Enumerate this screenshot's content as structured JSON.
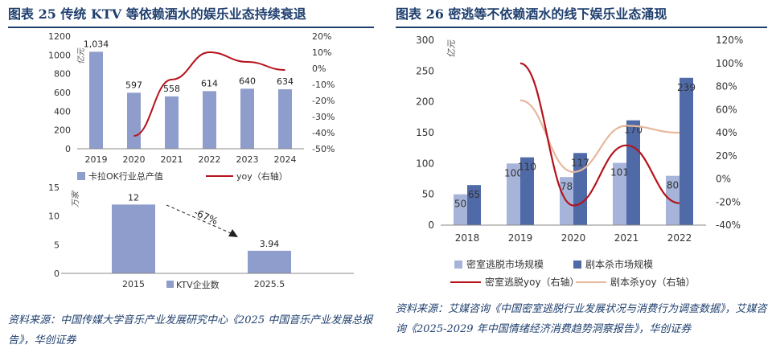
{
  "left": {
    "title": "图表 25   传统 KTV 等依赖酒水的娱乐业态持续衰退",
    "top_chart": {
      "type": "bar",
      "categories": [
        "2019",
        "2020",
        "2021",
        "2022",
        "2023",
        "2024"
      ],
      "series": [
        {
          "name": "卡拉OK行业总产值",
          "values": [
            1034,
            597,
            558,
            614,
            640,
            634
          ],
          "color": "#8e9dcb"
        },
        {
          "name": "yoy（右轴）",
          "values": [
            null,
            -42,
            -7,
            10,
            4,
            -1
          ],
          "color": "#b5121b"
        }
      ],
      "y_left_unit": "亿元",
      "ylim": [
        0,
        1200
      ],
      "y2lim": [
        -50,
        20
      ]
    },
    "bottom_chart": {
      "type": "bar",
      "categories": [
        "2015",
        "2025.5"
      ],
      "series": [
        {
          "name": "KTV企业数",
          "values": [
            12,
            3.94
          ],
          "color": "#8e9dcb"
        }
      ],
      "value_labels": [
        "12",
        "3.94"
      ],
      "y_unit": "万家",
      "ylim": [
        0,
        15
      ],
      "annotation": "-67%"
    },
    "source": "资料来源：中国传媒大学音乐产业发展研究中心《2025 中国音乐产业发展总报告》，华创证券"
  },
  "right": {
    "title": "图表 26   密逃等不依赖酒水的线下娱乐业态涌现",
    "chart": {
      "type": "bar",
      "categories": [
        "2018",
        "2019",
        "2020",
        "2021",
        "2022"
      ],
      "series": [
        {
          "name": "密室逃脱市场规模",
          "values": [
            50,
            100,
            78,
            101,
            80
          ],
          "color": "#a7b4da"
        },
        {
          "name": "剧本杀市场规模",
          "values": [
            65,
            110,
            117,
            170,
            239
          ],
          "color": "#4f6aa6"
        },
        {
          "name": "密室逃脱yoy（右轴）",
          "values": [
            null,
            100,
            -23,
            29,
            -21
          ],
          "color": "#b5121b"
        },
        {
          "name": "剧本杀yoy（右轴）",
          "values": [
            null,
            68,
            6,
            46,
            40
          ],
          "color": "#e6b89c"
        }
      ],
      "y_left_unit": "亿元",
      "ylim": [
        0,
        300
      ],
      "y2lim": [
        -40,
        120
      ]
    },
    "source": "资料来源：艾媒咨询《中国密室逃脱行业发展状况与消费行为调查数据》，艾媒咨询《2025-2029 年中国情绪经济消费趋势洞察报告》，华创证券"
  }
}
